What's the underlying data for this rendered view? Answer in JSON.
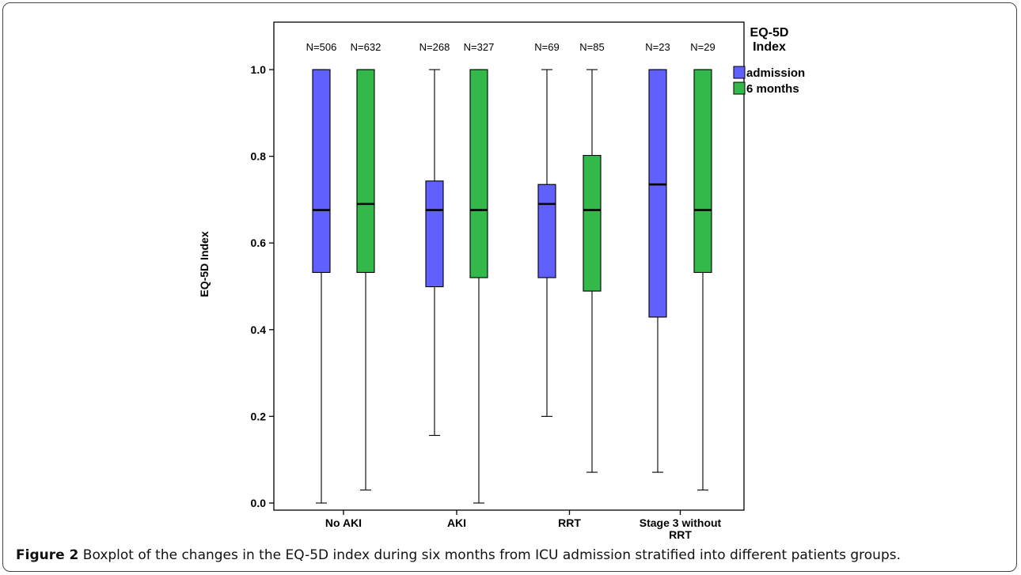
{
  "chart_data": {
    "type": "boxplot",
    "ylabel": "EQ-5D Index",
    "xlabel": "",
    "ylim": [
      0.0,
      1.0
    ],
    "yticks": [
      "0.0",
      "0.2",
      "0.4",
      "0.6",
      "0.8",
      "1.0"
    ],
    "grid": false,
    "legend": {
      "title_line1": "EQ-5D",
      "title_line2": "Index",
      "placement": "top-right, outside plot",
      "entries": [
        {
          "name": "admission",
          "color": "#6060ff"
        },
        {
          "name": "6 months",
          "color": "#33b84a"
        }
      ]
    },
    "categories": [
      {
        "label_line1": "No AKI",
        "label_line2": ""
      },
      {
        "label_line1": "AKI",
        "label_line2": ""
      },
      {
        "label_line1": "RRT",
        "label_line2": ""
      },
      {
        "label_line1": "Stage 3 without",
        "label_line2": "RRT"
      }
    ],
    "series": [
      {
        "name": "admission",
        "color": "#6060ff",
        "boxes": [
          {
            "n_label": "N=506",
            "min": 0.0,
            "q1": 0.532,
            "median": 0.676,
            "q3": 1.0,
            "max": 1.0
          },
          {
            "n_label": "N=268",
            "min": 0.156,
            "q1": 0.499,
            "median": 0.676,
            "q3": 0.743,
            "max": 1.0
          },
          {
            "n_label": "N=69",
            "min": 0.2,
            "q1": 0.52,
            "median": 0.69,
            "q3": 0.735,
            "max": 1.0
          },
          {
            "n_label": "N=23",
            "min": 0.071,
            "q1": 0.429,
            "median": 0.735,
            "q3": 1.0,
            "max": 1.0
          }
        ]
      },
      {
        "name": "6 months",
        "color": "#33b84a",
        "boxes": [
          {
            "n_label": "N=632",
            "min": 0.03,
            "q1": 0.532,
            "median": 0.69,
            "q3": 1.0,
            "max": 1.0
          },
          {
            "n_label": "N=327",
            "min": 0.0,
            "q1": 0.52,
            "median": 0.676,
            "q3": 1.0,
            "max": 1.0
          },
          {
            "n_label": "N=85",
            "min": 0.071,
            "q1": 0.489,
            "median": 0.676,
            "q3": 0.802,
            "max": 1.0
          },
          {
            "n_label": "N=29",
            "min": 0.03,
            "q1": 0.532,
            "median": 0.676,
            "q3": 1.0,
            "max": 1.0
          }
        ]
      }
    ]
  },
  "caption": {
    "label": "Figure 2",
    "text": " Boxplot of the changes in the EQ-5D index during six months from ICU admission stratified into different patients groups."
  }
}
